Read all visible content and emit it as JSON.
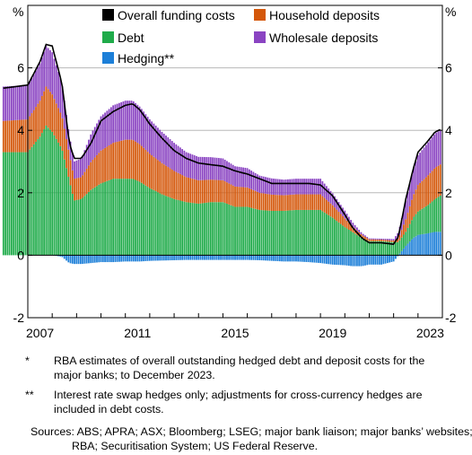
{
  "chart_data": {
    "type": "bar",
    "title": "",
    "y_unit_label": "%",
    "ylim": [
      -2,
      8
    ],
    "y_ticks": [
      -2,
      0,
      2,
      4,
      6
    ],
    "x_ticks": [
      "2007",
      "2011",
      "2015",
      "2019",
      "2023"
    ],
    "x_start": 2007.0,
    "x_end": 2024.0,
    "grid": true,
    "legend": [
      {
        "name": "Overall funding costs",
        "color": "#000000",
        "kind": "line"
      },
      {
        "name": "Household deposits",
        "color": "#d4570a",
        "kind": "bar"
      },
      {
        "name": "Debt",
        "color": "#1fab4a",
        "kind": "bar"
      },
      {
        "name": "Wholesale deposits",
        "color": "#8a44c2",
        "kind": "bar"
      },
      {
        "name": "Hedging**",
        "color": "#1c7fd8",
        "kind": "bar"
      }
    ],
    "series_keys": [
      "debt",
      "household",
      "wholesale",
      "hedging"
    ],
    "anchors": {
      "t": [
        2006.0,
        2007.0,
        2007.5,
        2007.75,
        2008.0,
        2008.4,
        2008.7,
        2008.9,
        2009.2,
        2009.6,
        2010.0,
        2010.5,
        2011.0,
        2011.3,
        2011.6,
        2012.0,
        2012.5,
        2013.0,
        2013.5,
        2014.0,
        2014.5,
        2015.0,
        2015.5,
        2016.0,
        2016.5,
        2017.0,
        2017.5,
        2018.0,
        2018.5,
        2019.0,
        2019.5,
        2020.0,
        2020.3,
        2020.7,
        2021.0,
        2021.5,
        2022.0,
        2022.2,
        2022.5,
        2022.8,
        2023.0,
        2023.4,
        2023.7,
        2024.0
      ],
      "debt": [
        3.3,
        3.3,
        3.8,
        4.15,
        3.95,
        3.4,
        2.4,
        1.75,
        1.8,
        2.1,
        2.3,
        2.45,
        2.45,
        2.45,
        2.35,
        2.15,
        1.95,
        1.8,
        1.7,
        1.65,
        1.7,
        1.7,
        1.55,
        1.55,
        1.45,
        1.42,
        1.42,
        1.45,
        1.45,
        1.45,
        1.2,
        0.9,
        0.75,
        0.55,
        0.45,
        0.45,
        0.42,
        0.42,
        0.45,
        0.65,
        0.75,
        0.9,
        1.05,
        1.2
      ],
      "household": [
        1.0,
        1.05,
        1.15,
        1.25,
        1.2,
        1.05,
        0.85,
        0.7,
        0.7,
        0.9,
        1.05,
        1.15,
        1.25,
        1.25,
        1.2,
        1.1,
        1.0,
        0.9,
        0.8,
        0.75,
        0.72,
        0.7,
        0.65,
        0.62,
        0.55,
        0.52,
        0.5,
        0.5,
        0.5,
        0.5,
        0.4,
        0.28,
        0.18,
        0.1,
        0.06,
        0.05,
        0.05,
        0.12,
        0.4,
        0.7,
        0.85,
        0.95,
        1.0,
        1.0
      ],
      "wholesale": [
        1.1,
        1.1,
        1.2,
        1.3,
        1.35,
        1.05,
        0.6,
        0.55,
        0.6,
        0.9,
        1.1,
        1.2,
        1.25,
        1.25,
        1.2,
        1.1,
        1.0,
        0.9,
        0.8,
        0.75,
        0.72,
        0.7,
        0.65,
        0.62,
        0.55,
        0.52,
        0.5,
        0.5,
        0.5,
        0.5,
        0.38,
        0.25,
        0.14,
        0.06,
        0.03,
        0.03,
        0.05,
        0.2,
        0.6,
        0.85,
        0.95,
        1.05,
        1.1,
        1.1
      ],
      "hedging": [
        0.0,
        0.0,
        0.0,
        0.0,
        0.0,
        -0.05,
        -0.25,
        -0.28,
        -0.28,
        -0.25,
        -0.22,
        -0.22,
        -0.2,
        -0.2,
        -0.2,
        -0.18,
        -0.17,
        -0.16,
        -0.15,
        -0.15,
        -0.15,
        -0.15,
        -0.15,
        -0.15,
        -0.16,
        -0.18,
        -0.2,
        -0.2,
        -0.22,
        -0.25,
        -0.3,
        -0.32,
        -0.35,
        -0.35,
        -0.3,
        -0.3,
        -0.2,
        0.0,
        0.3,
        0.55,
        0.65,
        0.7,
        0.75,
        0.75
      ],
      "overall": [
        5.35,
        5.45,
        6.2,
        6.75,
        6.7,
        5.5,
        3.6,
        3.1,
        3.1,
        3.6,
        4.3,
        4.6,
        4.8,
        4.85,
        4.65,
        4.2,
        3.75,
        3.35,
        3.1,
        2.95,
        2.9,
        2.85,
        2.7,
        2.6,
        2.45,
        2.3,
        2.3,
        2.3,
        2.3,
        2.25,
        1.9,
        1.3,
        0.9,
        0.55,
        0.4,
        0.4,
        0.35,
        0.6,
        1.8,
        2.75,
        3.3,
        3.65,
        3.95,
        4.05
      ]
    }
  },
  "footnotes": [
    {
      "mark": "*",
      "text": "RBA estimates of overall outstanding hedged debt and deposit costs for the major banks; to December 2023."
    },
    {
      "mark": "**",
      "text": "Interest rate swap hedges only; adjustments for cross-currency hedges are included in debt costs."
    }
  ],
  "sources": "Sources: ABS; APRA; ASX; Bloomberg; LSEG; major bank liaison; major banks’ websites; RBA; Securitisation System; US Federal Reserve."
}
